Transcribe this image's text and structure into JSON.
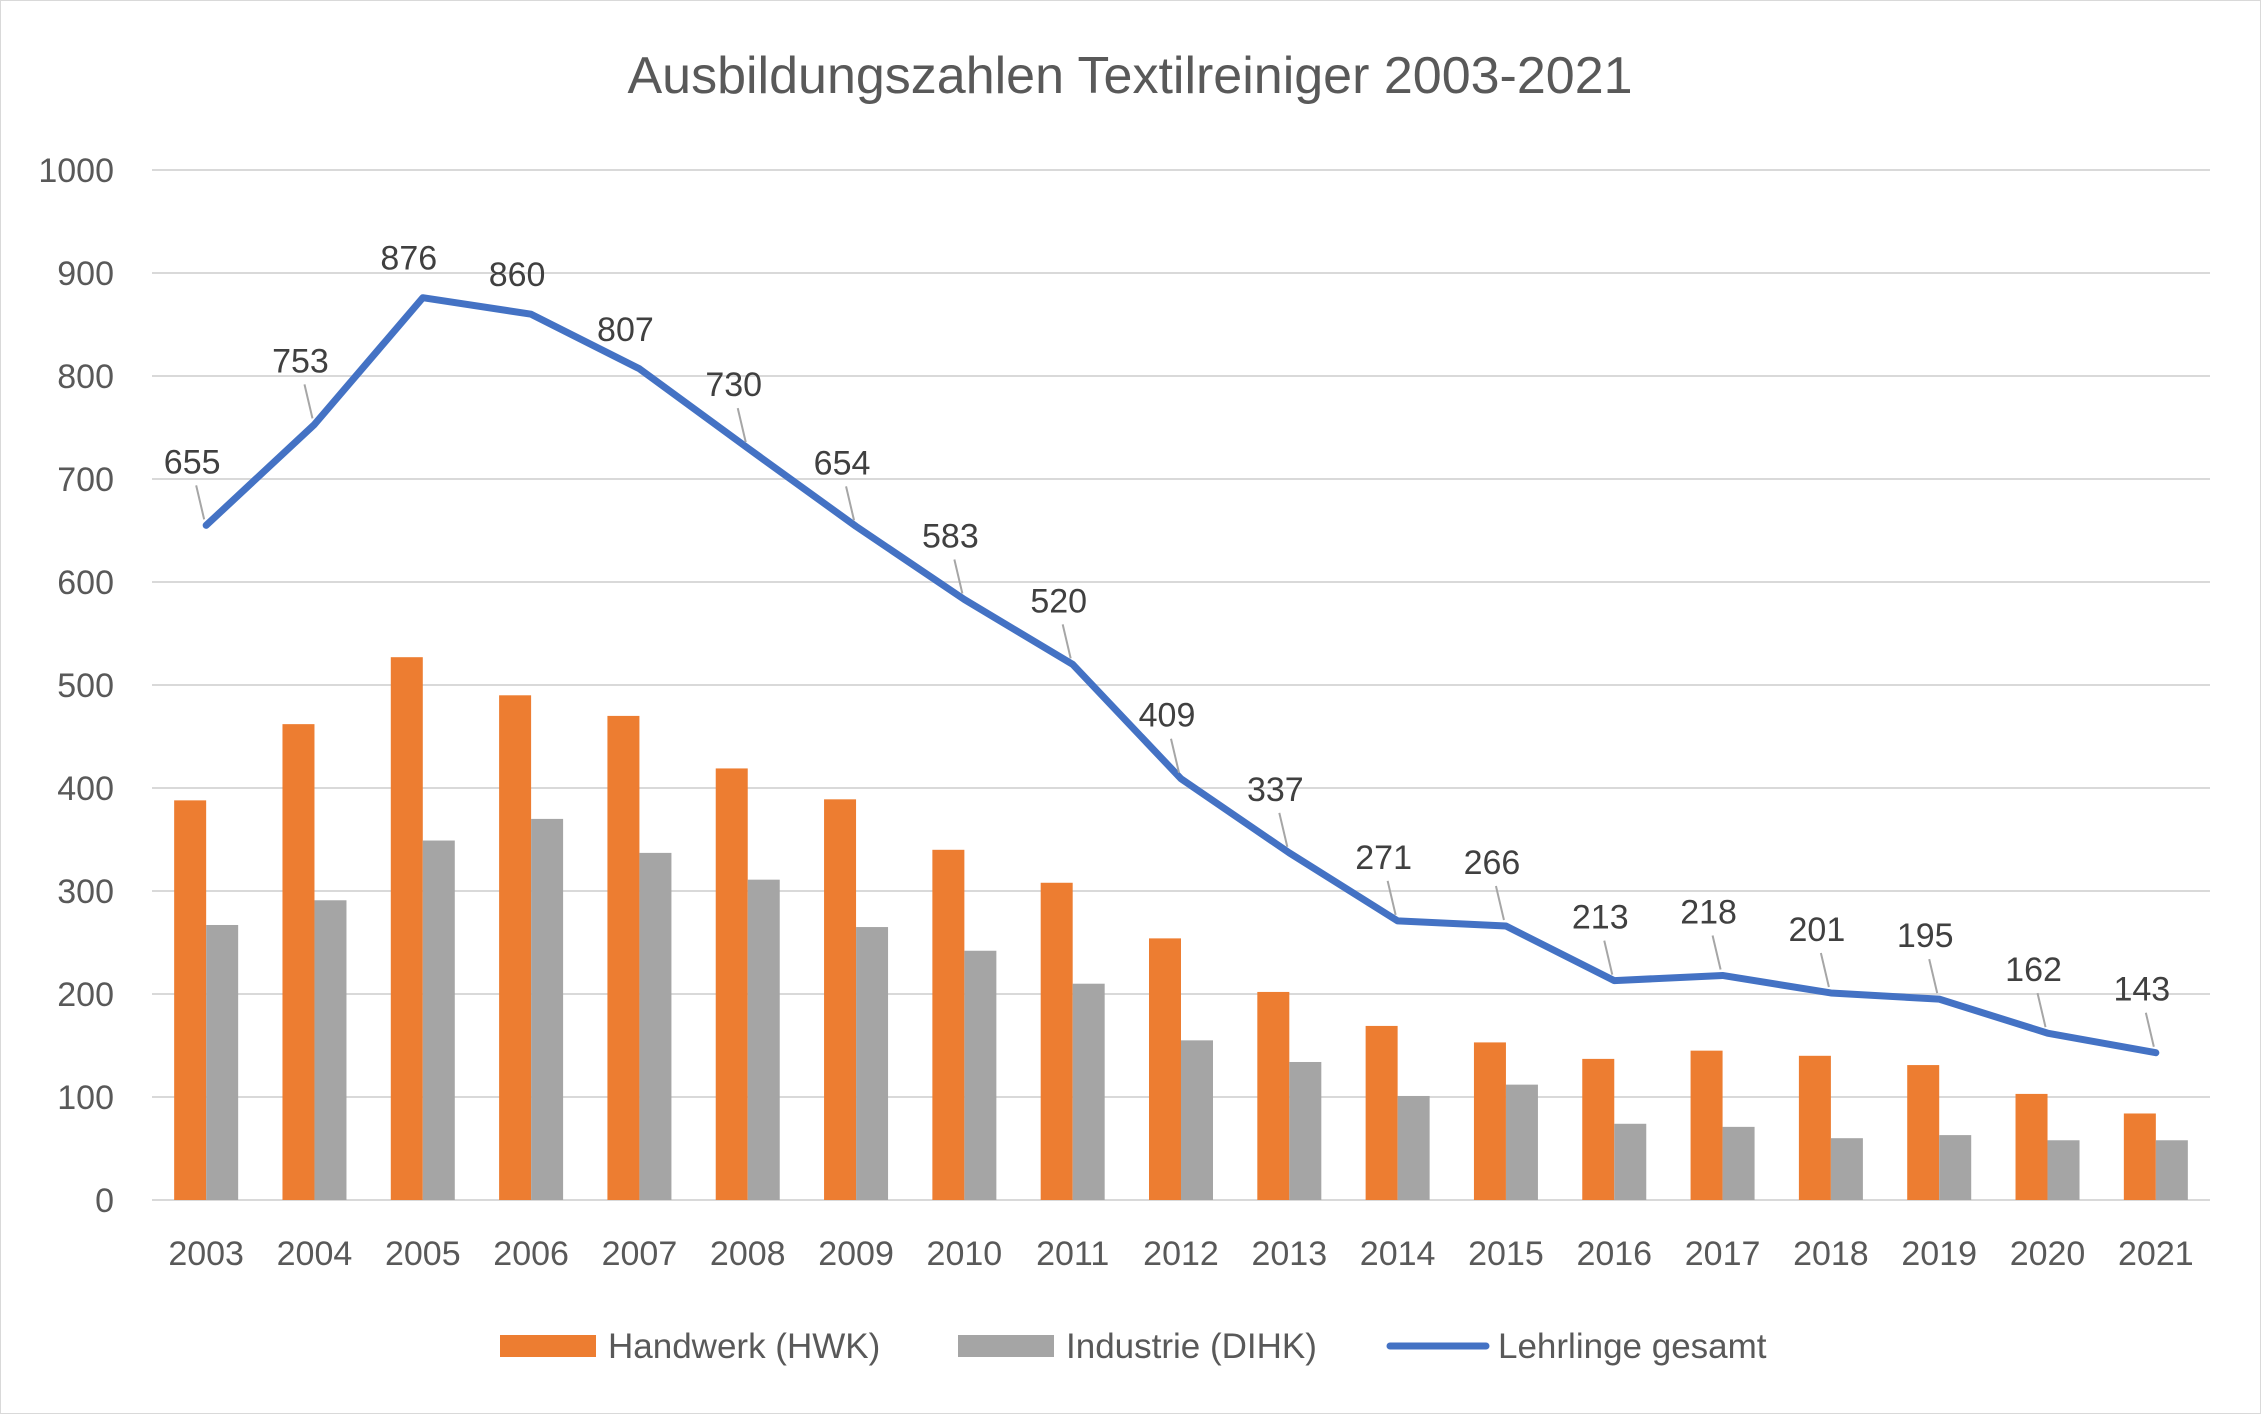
{
  "chart_data": {
    "type": "bar",
    "title": "Ausbildungszahlen Textilreiniger 2003-2021",
    "xlabel": "",
    "ylabel": "",
    "ylim": [
      0,
      1000
    ],
    "yticks": [
      0,
      100,
      200,
      300,
      400,
      500,
      600,
      700,
      800,
      900,
      1000
    ],
    "grid": true,
    "legend_position": "bottom",
    "categories": [
      "2003",
      "2004",
      "2005",
      "2006",
      "2007",
      "2008",
      "2009",
      "2010",
      "2011",
      "2012",
      "2013",
      "2014",
      "2015",
      "2016",
      "2017",
      "2018",
      "2019",
      "2020",
      "2021"
    ],
    "series": [
      {
        "name": "Handwerk (HWK)",
        "type": "bar",
        "color": "#ED7D31",
        "values": [
          388,
          462,
          527,
          490,
          470,
          419,
          389,
          340,
          308,
          254,
          202,
          169,
          153,
          137,
          145,
          140,
          131,
          103,
          84
        ]
      },
      {
        "name": "Industrie (DIHK)",
        "type": "bar",
        "color": "#A5A5A5",
        "values": [
          267,
          291,
          349,
          370,
          337,
          311,
          265,
          242,
          210,
          155,
          134,
          101,
          112,
          74,
          71,
          60,
          63,
          58,
          58
        ]
      },
      {
        "name": "Lehrlinge gesamt",
        "type": "line",
        "color": "#4472C4",
        "values": [
          655,
          753,
          876,
          860,
          807,
          730,
          654,
          583,
          520,
          409,
          337,
          271,
          266,
          213,
          218,
          201,
          195,
          162,
          143
        ],
        "data_labels": [
          "655",
          "753",
          "876",
          "860",
          "807",
          "730",
          "654",
          "583",
          "520",
          "409",
          "337",
          "271",
          "266",
          "213",
          "218",
          "201",
          "195",
          "162",
          "143"
        ]
      }
    ]
  }
}
